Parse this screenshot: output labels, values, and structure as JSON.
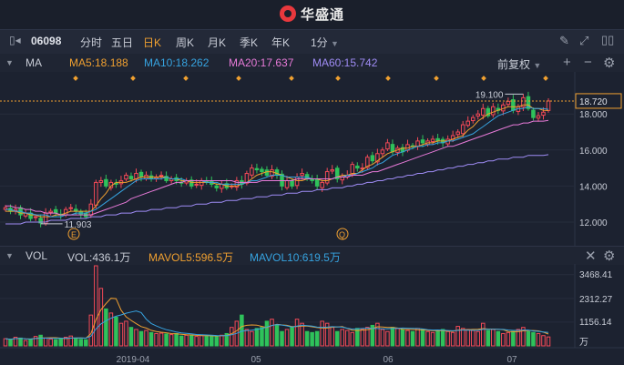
{
  "brand": {
    "name": "华盛通"
  },
  "toolbar": {
    "code": "06098",
    "periods": [
      "分时",
      "五日",
      "日K",
      "周K",
      "月K",
      "季K",
      "年K"
    ],
    "active": "日K",
    "minute": "1分"
  },
  "ma_legend": {
    "label": "MA",
    "ma5": "MA5:18.188",
    "ma10": "MA10:18.262",
    "ma20": "MA20:17.637",
    "ma60": "MA60:15.742",
    "adjust": "前复权",
    "colors": {
      "ma5": "#f0a030",
      "ma10": "#36a3e0",
      "ma20": "#e77ad8",
      "ma60": "#9f8cf5"
    }
  },
  "price_axis": [
    "18.720",
    "18.000",
    "16.000",
    "14.000",
    "12.000"
  ],
  "annotations": {
    "high": "19.100",
    "low": "11.903",
    "marker_e": "E",
    "marker_q": "Q"
  },
  "vol_legend": {
    "label": "VOL",
    "vol": "VOL:436.1万",
    "mavol5": "MAVOL5:596.5万",
    "mavol10": "MAVOL10:619.5万"
  },
  "vol_axis": [
    "3468.41",
    "2312.27",
    "1156.14",
    "万"
  ],
  "x_axis": [
    "2019-04",
    "05",
    "06",
    "07"
  ],
  "chart_data": {
    "type": "candlestick",
    "x_labels": [
      "2019-04",
      "05",
      "06",
      "07"
    ],
    "y_ticks": [
      12.0,
      14.0,
      16.0,
      18.0,
      18.72
    ],
    "last_price": 18.72,
    "high_marked": 19.1,
    "low_marked": 11.903,
    "close": [
      12.8,
      12.6,
      12.7,
      12.4,
      12.5,
      12.2,
      12.3,
      11.95,
      12.5,
      12.6,
      12.5,
      12.4,
      12.7,
      12.8,
      12.6,
      12.45,
      12.3,
      13.0,
      14.2,
      14.3,
      14.0,
      14.2,
      14.1,
      14.3,
      14.6,
      14.4,
      14.7,
      14.5,
      14.6,
      14.4,
      14.5,
      14.6,
      14.3,
      14.4,
      14.3,
      14.2,
      14.3,
      14.0,
      14.1,
      14.3,
      14.2,
      14.1,
      13.9,
      14.1,
      13.9,
      14.0,
      14.3,
      14.1,
      14.7,
      15.0,
      14.9,
      14.8,
      14.6,
      14.9,
      14.6,
      14.0,
      14.3,
      14.0,
      14.5,
      14.7,
      14.4,
      14.3,
      14.0,
      14.2,
      14.8,
      14.9,
      14.4,
      14.5,
      14.6,
      15.2,
      15.0,
      15.0,
      15.6,
      15.4,
      15.8,
      16.0,
      16.4,
      15.9,
      16.1,
      15.9,
      16.3,
      16.2,
      16.5,
      16.4,
      16.5,
      16.6,
      16.5,
      16.4,
      16.6,
      16.8,
      17.0,
      17.4,
      17.6,
      17.8,
      18.0,
      18.3,
      17.9,
      18.4,
      18.2,
      18.5,
      18.7,
      18.2,
      18.4,
      18.9,
      18.3,
      17.8,
      17.9,
      18.1,
      18.72
    ],
    "series": [
      {
        "name": "MA5",
        "values": [
          12.6,
          12.6,
          12.6,
          12.5,
          12.5,
          12.4,
          12.4,
          12.3,
          12.3,
          12.3,
          12.4,
          12.4,
          12.5,
          12.6,
          12.6,
          12.6,
          12.6,
          12.6,
          12.9,
          13.3,
          13.6,
          14.0,
          14.2,
          14.2,
          14.2,
          14.3,
          14.4,
          14.5,
          14.5,
          14.5,
          14.5,
          14.5,
          14.5,
          14.4,
          14.4,
          14.3,
          14.3,
          14.2,
          14.2,
          14.2,
          14.2,
          14.2,
          14.1,
          14.1,
          14.0,
          14.0,
          14.0,
          14.1,
          14.2,
          14.4,
          14.6,
          14.7,
          14.8,
          14.8,
          14.7,
          14.6,
          14.5,
          14.4,
          14.3,
          14.3,
          14.4,
          14.4,
          14.4,
          14.3,
          14.3,
          14.4,
          14.5,
          14.6,
          14.6,
          14.7,
          14.7,
          14.9,
          15.1,
          15.2,
          15.4,
          15.6,
          15.8,
          15.9,
          16.0,
          16.1,
          16.1,
          16.2,
          16.2,
          16.3,
          16.4,
          16.4,
          16.5,
          16.5,
          16.5,
          16.6,
          16.7,
          16.8,
          17.1,
          17.3,
          17.6,
          17.8,
          18.0,
          18.1,
          18.2,
          18.3,
          18.4,
          18.4,
          18.4,
          18.5,
          18.5,
          18.3,
          18.3,
          18.2,
          18.19
        ]
      },
      {
        "name": "MA10",
        "values": [
          12.7,
          12.7,
          12.6,
          12.6,
          12.5,
          12.5,
          12.4,
          12.4,
          12.4,
          12.3,
          12.3,
          12.3,
          12.4,
          12.4,
          12.5,
          12.5,
          12.5,
          12.6,
          12.7,
          12.9,
          13.1,
          13.3,
          13.5,
          13.7,
          13.9,
          14.1,
          14.3,
          14.4,
          14.4,
          14.4,
          14.4,
          14.4,
          14.5,
          14.4,
          14.4,
          14.4,
          14.3,
          14.3,
          14.3,
          14.3,
          14.2,
          14.2,
          14.2,
          14.1,
          14.1,
          14.1,
          14.1,
          14.1,
          14.2,
          14.3,
          14.3,
          14.4,
          14.5,
          14.6,
          14.6,
          14.6,
          14.5,
          14.5,
          14.5,
          14.5,
          14.5,
          14.4,
          14.4,
          14.4,
          14.4,
          14.4,
          14.5,
          14.5,
          14.6,
          14.6,
          14.7,
          14.8,
          14.9,
          15.0,
          15.2,
          15.3,
          15.5,
          15.7,
          15.8,
          15.9,
          16.0,
          16.1,
          16.2,
          16.2,
          16.3,
          16.3,
          16.4,
          16.4,
          16.5,
          16.5,
          16.6,
          16.7,
          16.8,
          16.9,
          17.1,
          17.3,
          17.5,
          17.7,
          17.9,
          18.0,
          18.1,
          18.2,
          18.3,
          18.3,
          18.4,
          18.3,
          18.3,
          18.3,
          18.26
        ]
      },
      {
        "name": "MA20",
        "values": [
          12.9,
          12.9,
          12.8,
          12.8,
          12.7,
          12.7,
          12.6,
          12.6,
          12.5,
          12.5,
          12.5,
          12.4,
          12.4,
          12.4,
          12.4,
          12.4,
          12.4,
          12.4,
          12.5,
          12.6,
          12.7,
          12.8,
          12.9,
          13.0,
          13.1,
          13.3,
          13.4,
          13.5,
          13.6,
          13.7,
          13.8,
          13.9,
          14.0,
          14.1,
          14.2,
          14.2,
          14.3,
          14.3,
          14.3,
          14.3,
          14.3,
          14.3,
          14.3,
          14.3,
          14.3,
          14.3,
          14.2,
          14.2,
          14.2,
          14.2,
          14.2,
          14.3,
          14.3,
          14.3,
          14.3,
          14.3,
          14.3,
          14.3,
          14.4,
          14.4,
          14.4,
          14.4,
          14.4,
          14.4,
          14.4,
          14.4,
          14.5,
          14.5,
          14.5,
          14.6,
          14.6,
          14.6,
          14.7,
          14.8,
          14.8,
          14.9,
          15.0,
          15.1,
          15.2,
          15.3,
          15.4,
          15.5,
          15.6,
          15.7,
          15.8,
          15.9,
          16.0,
          16.1,
          16.2,
          16.2,
          16.3,
          16.4,
          16.5,
          16.6,
          16.7,
          16.8,
          16.9,
          17.0,
          17.1,
          17.2,
          17.3,
          17.4,
          17.4,
          17.5,
          17.5,
          17.6,
          17.6,
          17.6,
          17.64
        ]
      },
      {
        "name": "MA60",
        "values": [
          11.9,
          11.9,
          11.9,
          11.9,
          12.0,
          12.0,
          12.0,
          12.0,
          12.0,
          12.1,
          12.1,
          12.1,
          12.1,
          12.2,
          12.2,
          12.2,
          12.2,
          12.3,
          12.3,
          12.3,
          12.4,
          12.4,
          12.4,
          12.5,
          12.5,
          12.5,
          12.6,
          12.6,
          12.6,
          12.7,
          12.7,
          12.7,
          12.8,
          12.8,
          12.8,
          12.9,
          12.9,
          12.9,
          13.0,
          13.0,
          13.0,
          13.1,
          13.1,
          13.1,
          13.2,
          13.2,
          13.2,
          13.3,
          13.3,
          13.3,
          13.4,
          13.4,
          13.4,
          13.5,
          13.5,
          13.5,
          13.6,
          13.6,
          13.6,
          13.7,
          13.7,
          13.7,
          13.8,
          13.8,
          13.8,
          13.9,
          13.9,
          13.9,
          14.0,
          14.0,
          14.1,
          14.1,
          14.2,
          14.2,
          14.3,
          14.3,
          14.4,
          14.4,
          14.5,
          14.5,
          14.6,
          14.6,
          14.7,
          14.7,
          14.8,
          14.8,
          14.9,
          14.9,
          15.0,
          15.0,
          15.1,
          15.1,
          15.2,
          15.2,
          15.3,
          15.3,
          15.4,
          15.4,
          15.5,
          15.5,
          15.5,
          15.6,
          15.6,
          15.6,
          15.7,
          15.7,
          15.7,
          15.7,
          15.74
        ]
      }
    ],
    "volume": [
      350,
      300,
      420,
      380,
      260,
      310,
      460,
      520,
      380,
      330,
      300,
      350,
      420,
      480,
      360,
      320,
      300,
      1500,
      3900,
      2800,
      1800,
      1600,
      1400,
      1100,
      1200,
      900,
      800,
      700,
      750,
      650,
      600,
      620,
      580,
      550,
      600,
      480,
      520,
      500,
      460,
      520,
      480,
      500,
      450,
      520,
      600,
      900,
      1200,
      1500,
      800,
      700,
      850,
      900,
      1200,
      1300,
      1000,
      700,
      800,
      900,
      1300,
      1100,
      700,
      650,
      700,
      1200,
      1100,
      900,
      700,
      800,
      750,
      650,
      850,
      800,
      900,
      1000,
      1100,
      800,
      700,
      900,
      850,
      800,
      750,
      700,
      850,
      800,
      700,
      650,
      750,
      800,
      700,
      650,
      950,
      850,
      800,
      750,
      700,
      1100,
      750,
      800,
      700,
      600,
      650,
      700,
      800,
      900,
      700,
      650,
      600,
      500,
      436
    ],
    "vol_ticks": [
      1156.14,
      2312.27,
      3468.41
    ],
    "vol_unit": "万"
  }
}
